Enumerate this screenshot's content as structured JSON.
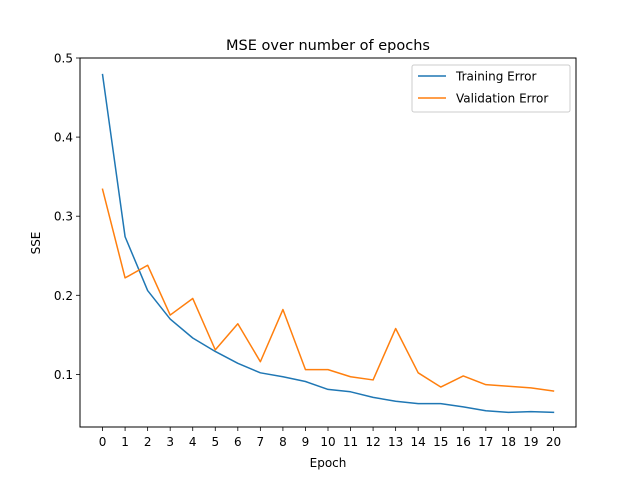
{
  "chart_data": {
    "type": "line",
    "title": "MSE over number of epochs",
    "xlabel": "Epoch",
    "ylabel": "SSE",
    "x": [
      0,
      1,
      2,
      3,
      4,
      5,
      6,
      7,
      8,
      9,
      10,
      11,
      12,
      13,
      14,
      15,
      16,
      17,
      18,
      19,
      20
    ],
    "x_ticks": [
      "0",
      "1",
      "2",
      "3",
      "4",
      "5",
      "6",
      "7",
      "8",
      "9",
      "10",
      "11",
      "12",
      "13",
      "14",
      "15",
      "16",
      "17",
      "18",
      "19",
      "20"
    ],
    "y_ticks": [
      "0.1",
      "0.2",
      "0.3",
      "0.4",
      "0.5"
    ],
    "xlim": [
      -1,
      21
    ],
    "ylim": [
      0.0335,
      0.5
    ],
    "grid": false,
    "legend": "top-right",
    "series": [
      {
        "name": "Training Error",
        "color": "#1f77b4",
        "values": [
          0.479,
          0.274,
          0.206,
          0.17,
          0.146,
          0.129,
          0.114,
          0.102,
          0.097,
          0.091,
          0.081,
          0.078,
          0.071,
          0.066,
          0.063,
          0.063,
          0.059,
          0.054,
          0.052,
          0.053,
          0.052
        ]
      },
      {
        "name": "Validation Error",
        "color": "#ff7f0e",
        "values": [
          0.334,
          0.222,
          0.238,
          0.175,
          0.196,
          0.131,
          0.164,
          0.116,
          0.182,
          0.106,
          0.106,
          0.097,
          0.093,
          0.158,
          0.102,
          0.084,
          0.098,
          0.087,
          0.085,
          0.083,
          0.079
        ]
      }
    ]
  }
}
